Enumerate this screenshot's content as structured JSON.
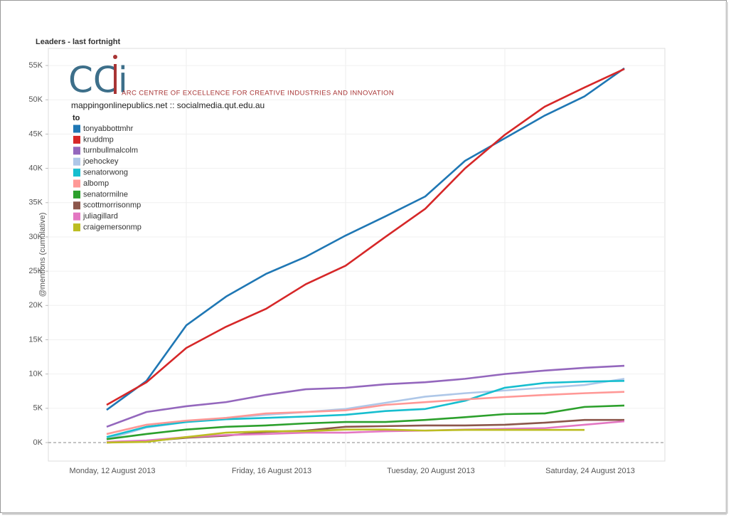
{
  "chart_data": {
    "type": "line",
    "title": "Leaders - last fortnight",
    "logo": "CCi",
    "organization": "ARC CENTRE OF EXCELLENCE FOR CREATIVE INDUSTRIES AND INNOVATION",
    "site": "mappingonlinepublics.net :: socialmedia.qut.edu.au",
    "legend_title": "to",
    "y_label": "@mentions (cumulative)",
    "categories": [
      "Monday, 12 August 2013",
      null,
      null,
      null,
      "Friday, 16 August 2013",
      null,
      null,
      null,
      "Tuesday, 20 August 2013",
      null,
      null,
      null,
      "Saturday, 24 August 2013",
      null
    ],
    "ylim": [
      -2700,
      57500
    ],
    "yticks": [
      {
        "value": 0,
        "label": "0K"
      },
      {
        "value": 5000,
        "label": "5K"
      },
      {
        "value": 10000,
        "label": "10K"
      },
      {
        "value": 15000,
        "label": "15K"
      },
      {
        "value": 20000,
        "label": "20K"
      },
      {
        "value": 25000,
        "label": "25K"
      },
      {
        "value": 30000,
        "label": "30K"
      },
      {
        "value": 35000,
        "label": "35K"
      },
      {
        "value": 40000,
        "label": "40K"
      },
      {
        "value": 45000,
        "label": "45K"
      },
      {
        "value": 50000,
        "label": "50K"
      },
      {
        "value": 55000,
        "label": "55K"
      }
    ],
    "grid": true,
    "legend": "upper left",
    "series": [
      {
        "name": "tonyabbottmhr",
        "color": "#1f77b4",
        "values": [
          4770,
          9000,
          17100,
          21300,
          24600,
          27100,
          30200,
          33000,
          35900,
          41100,
          44400,
          47700,
          50500,
          54600
        ]
      },
      {
        "name": "kruddmp",
        "color": "#d62728",
        "values": [
          5500,
          8800,
          13800,
          16900,
          19500,
          23100,
          25800,
          30000,
          34100,
          40000,
          44900,
          49000,
          51800,
          54500
        ]
      },
      {
        "name": "turnbullmalcolm",
        "color": "#9467bd",
        "values": [
          2300,
          4460,
          5300,
          5900,
          6950,
          7780,
          7990,
          8500,
          8800,
          9300,
          10000,
          10500,
          10900,
          11200
        ]
      },
      {
        "name": "joehockey",
        "color": "#aec7e8",
        "values": [
          500,
          2200,
          3000,
          3600,
          4050,
          4460,
          4900,
          5800,
          6700,
          7200,
          7600,
          8000,
          8400,
          9300
        ]
      },
      {
        "name": "senatorwong",
        "color": "#17becf",
        "values": [
          800,
          2300,
          3000,
          3400,
          3600,
          3800,
          4050,
          4600,
          4900,
          6100,
          8000,
          8700,
          8900,
          9000
        ]
      },
      {
        "name": "albomp",
        "color": "#ff9896",
        "values": [
          1250,
          2600,
          3200,
          3600,
          4250,
          4460,
          4700,
          5500,
          5900,
          6300,
          6640,
          6950,
          7200,
          7400
        ]
      },
      {
        "name": "senatormilne",
        "color": "#2ca02c",
        "values": [
          500,
          1250,
          1900,
          2300,
          2500,
          2800,
          3000,
          3000,
          3300,
          3700,
          4150,
          4250,
          5200,
          5400
        ]
      },
      {
        "name": "scottmorrisonmp",
        "color": "#8c564b",
        "values": [
          0,
          200,
          700,
          1000,
          1550,
          1750,
          2300,
          2400,
          2500,
          2500,
          2600,
          2900,
          3300,
          3300
        ]
      },
      {
        "name": "juliagillard",
        "color": "#e377c2",
        "values": [
          100,
          300,
          800,
          1100,
          1250,
          1450,
          1450,
          1650,
          1750,
          1900,
          2000,
          2100,
          2600,
          3100
        ]
      },
      {
        "name": "craigemersonmp",
        "color": "#bcbd22",
        "values": [
          0,
          100,
          800,
          1450,
          1650,
          1650,
          1900,
          1900,
          1750,
          1850,
          1850,
          1850,
          1850,
          null
        ]
      }
    ]
  }
}
